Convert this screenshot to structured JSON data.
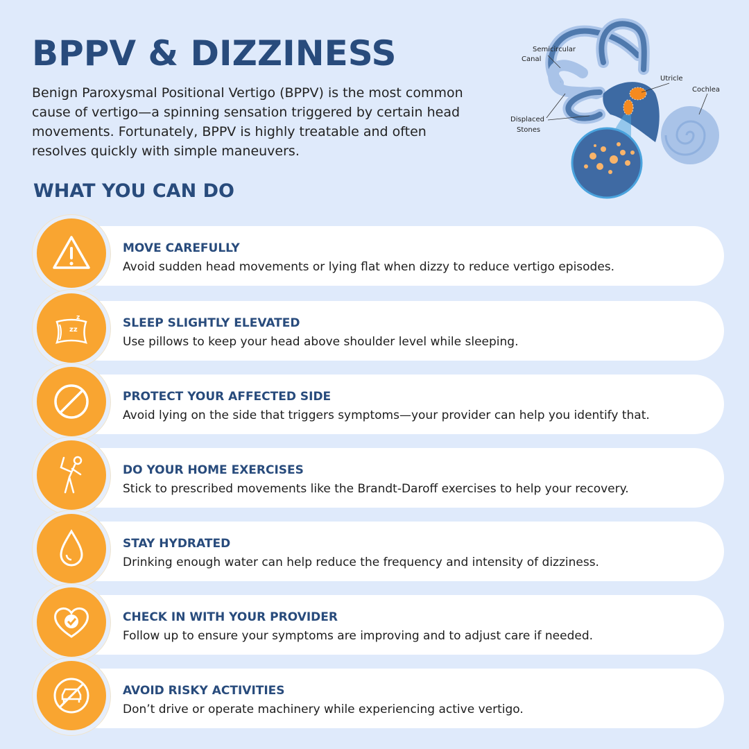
{
  "header": {
    "title": "BPPV & DIZZINESS",
    "intro": "Benign Paroxysmal Positional Vertigo (BPPV) is the most common cause of vertigo—a spinning sensation triggered by certain head movements. Fortunately, BPPV is highly treatable and often resolves quickly with simple maneuvers."
  },
  "diagram": {
    "labels": {
      "semicircular_1": "Semicircular",
      "semicircular_2": "Canal",
      "utricle": "Utricle",
      "cochlea": "Cochlea",
      "displaced_1": "Displaced",
      "displaced_2": "Stones"
    }
  },
  "section_title": "WHAT YOU CAN DO",
  "colors": {
    "accent": "#f9a531",
    "heading": "#284b7c",
    "background": "#dfeafb"
  },
  "items": [
    {
      "icon": "warning-icon",
      "title": "MOVE CAREFULLY",
      "desc": "Avoid sudden head movements or lying flat when dizzy to reduce vertigo episodes."
    },
    {
      "icon": "pillow-icon",
      "title": "SLEEP SLIGHTLY ELEVATED",
      "desc": "Use pillows to keep your head above shoulder level while sleeping."
    },
    {
      "icon": "prohibited-icon",
      "title": "PROTECT YOUR AFFECTED SIDE",
      "desc": "Avoid lying on the side that triggers symptoms—your provider can help you identify that."
    },
    {
      "icon": "exercise-icon",
      "title": "DO YOUR HOME EXERCISES",
      "desc": "Stick to prescribed movements like the Brandt-Daroff exercises to help your recovery."
    },
    {
      "icon": "water-drop-icon",
      "title": "STAY HYDRATED",
      "desc": "Drinking enough water can help reduce the frequency and intensity of dizziness."
    },
    {
      "icon": "heart-check-icon",
      "title": "CHECK IN WITH YOUR PROVIDER",
      "desc": "Follow up to ensure your symptoms are improving and to adjust care if needed."
    },
    {
      "icon": "no-driving-icon",
      "title": "AVOID RISKY ACTIVITIES",
      "desc": "Don’t drive or operate machinery while experiencing active vertigo."
    }
  ]
}
